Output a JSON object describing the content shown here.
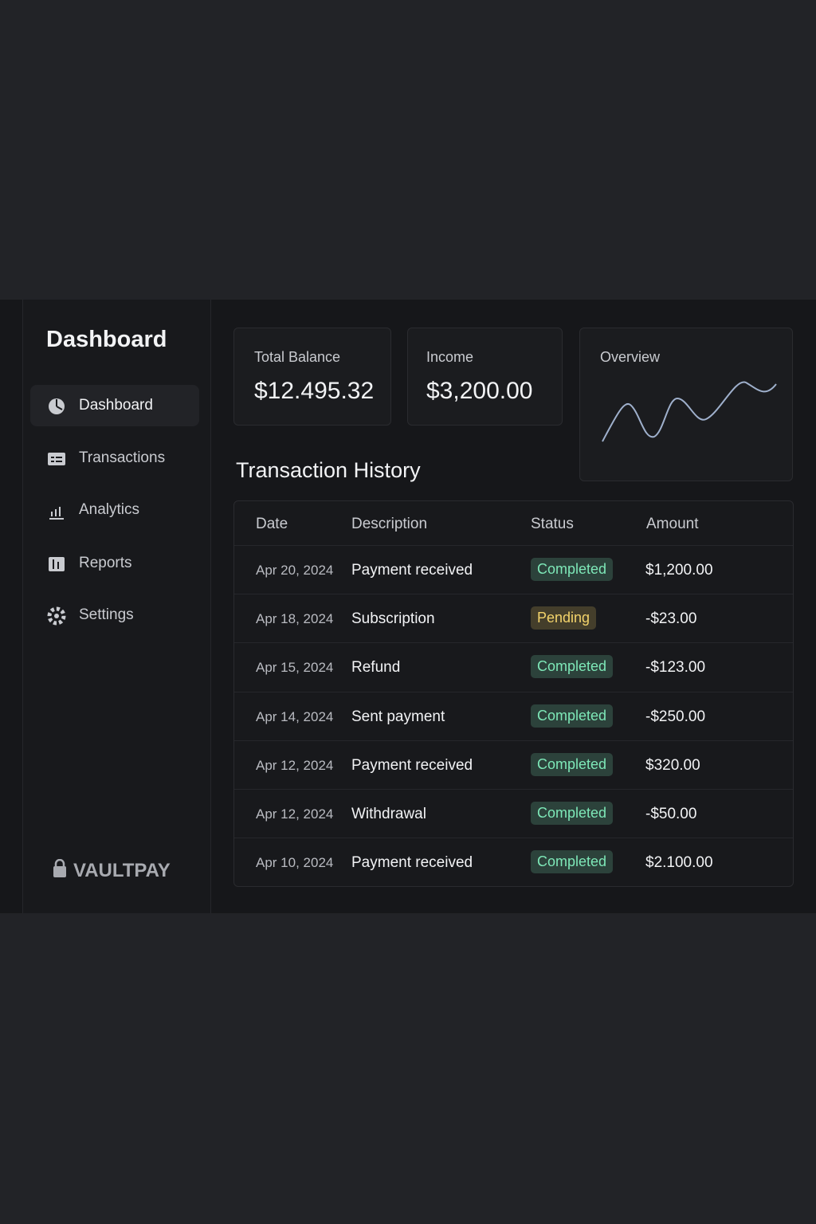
{
  "sidebar": {
    "title": "Dashboard",
    "nav": [
      "Dashboard",
      "Transactions",
      "Analytics",
      "Reports",
      "Settings"
    ],
    "brand": "VAULTPAY"
  },
  "cards": [
    {
      "label": "Total Balance",
      "value": "$12.495.32"
    },
    {
      "label": "Income",
      "value": "$3,200.00"
    }
  ],
  "overview": {
    "title": "Overview"
  },
  "table": {
    "title": "Transaction History",
    "columns": [
      "Date",
      "Description",
      "Status",
      "Amount"
    ],
    "rows": [
      {
        "date": "Apr 20, 2024",
        "description": "Payment received",
        "status": "Completed",
        "amount": "$1,200.00",
        "status_color": "#7ee8b8"
      },
      {
        "date": "Apr 18, 2024",
        "description": "Subscription",
        "status": "Pending",
        "amount": "-$23.00",
        "status_color": "#f3d36b"
      },
      {
        "date": "Apr 15, 2024",
        "description": "Refund",
        "status": "Completed",
        "amount": "-$123.00",
        "status_color": "#7ee8b8"
      },
      {
        "date": "Apr 14, 2024",
        "description": "Sent payment",
        "status": "Completed",
        "amount": "-$250.00",
        "status_color": "#7ee8b8"
      },
      {
        "date": "Apr 12, 2024",
        "description": "Payment received",
        "status": "Completed",
        "amount": "$320.00",
        "status_color": "#7ee8b8"
      },
      {
        "date": "Apr 12, 2024",
        "description": "Withdrawal",
        "status": "Completed",
        "amount": "-$50.00",
        "status_color": "#7ee8b8"
      },
      {
        "date": "Apr 10, 2024",
        "description": "Payment received",
        "status": "Completed",
        "amount": "$2.100.00",
        "status_color": "#7ee8b8"
      }
    ]
  }
}
